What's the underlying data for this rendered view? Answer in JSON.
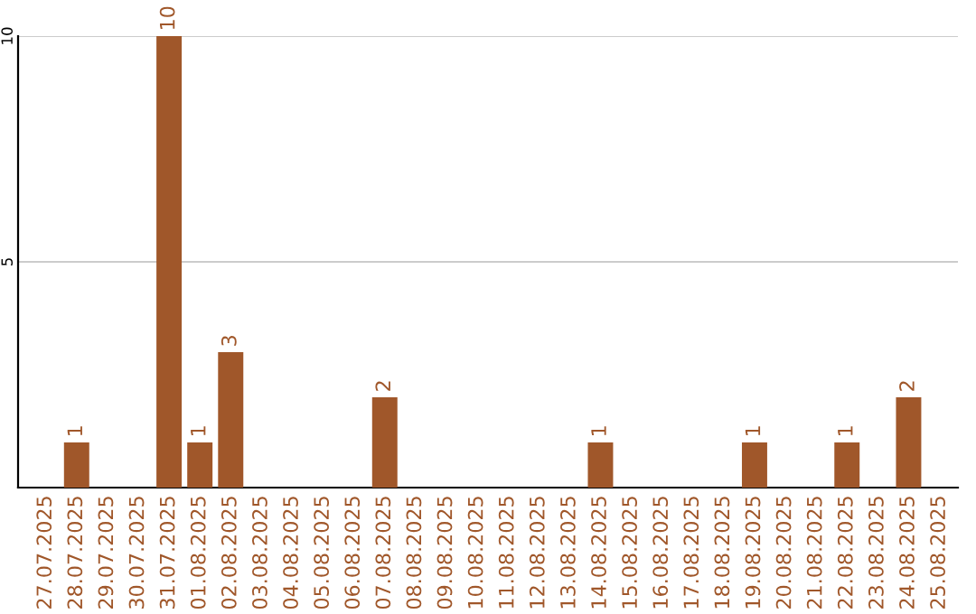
{
  "chart_data": {
    "type": "bar",
    "categories": [
      "27.07.2025",
      "28.07.2025",
      "29.07.2025",
      "30.07.2025",
      "31.07.2025",
      "01.08.2025",
      "02.08.2025",
      "03.08.2025",
      "04.08.2025",
      "05.08.2025",
      "06.08.2025",
      "07.08.2025",
      "08.08.2025",
      "09.08.2025",
      "10.08.2025",
      "11.08.2025",
      "12.08.2025",
      "13.08.2025",
      "14.08.2025",
      "15.08.2025",
      "16.08.2025",
      "17.08.2025",
      "18.08.2025",
      "19.08.2025",
      "20.08.2025",
      "21.08.2025",
      "22.08.2025",
      "23.08.2025",
      "24.08.2025",
      "25.08.2025"
    ],
    "values": [
      0,
      1,
      0,
      0,
      10,
      1,
      3,
      0,
      0,
      0,
      0,
      2,
      0,
      0,
      0,
      0,
      0,
      0,
      1,
      0,
      0,
      0,
      0,
      1,
      0,
      0,
      1,
      0,
      2,
      0
    ],
    "value_labels": [
      null,
      "1",
      null,
      null,
      "10",
      "1",
      "3",
      null,
      null,
      null,
      null,
      "2",
      null,
      null,
      null,
      null,
      null,
      null,
      "1",
      null,
      null,
      null,
      null,
      "1",
      null,
      null,
      "1",
      null,
      "2",
      null
    ],
    "color": "#a0572a",
    "ylim": [
      0,
      10
    ],
    "yticks": [
      5,
      10
    ],
    "grid": "y",
    "legend": false
  }
}
